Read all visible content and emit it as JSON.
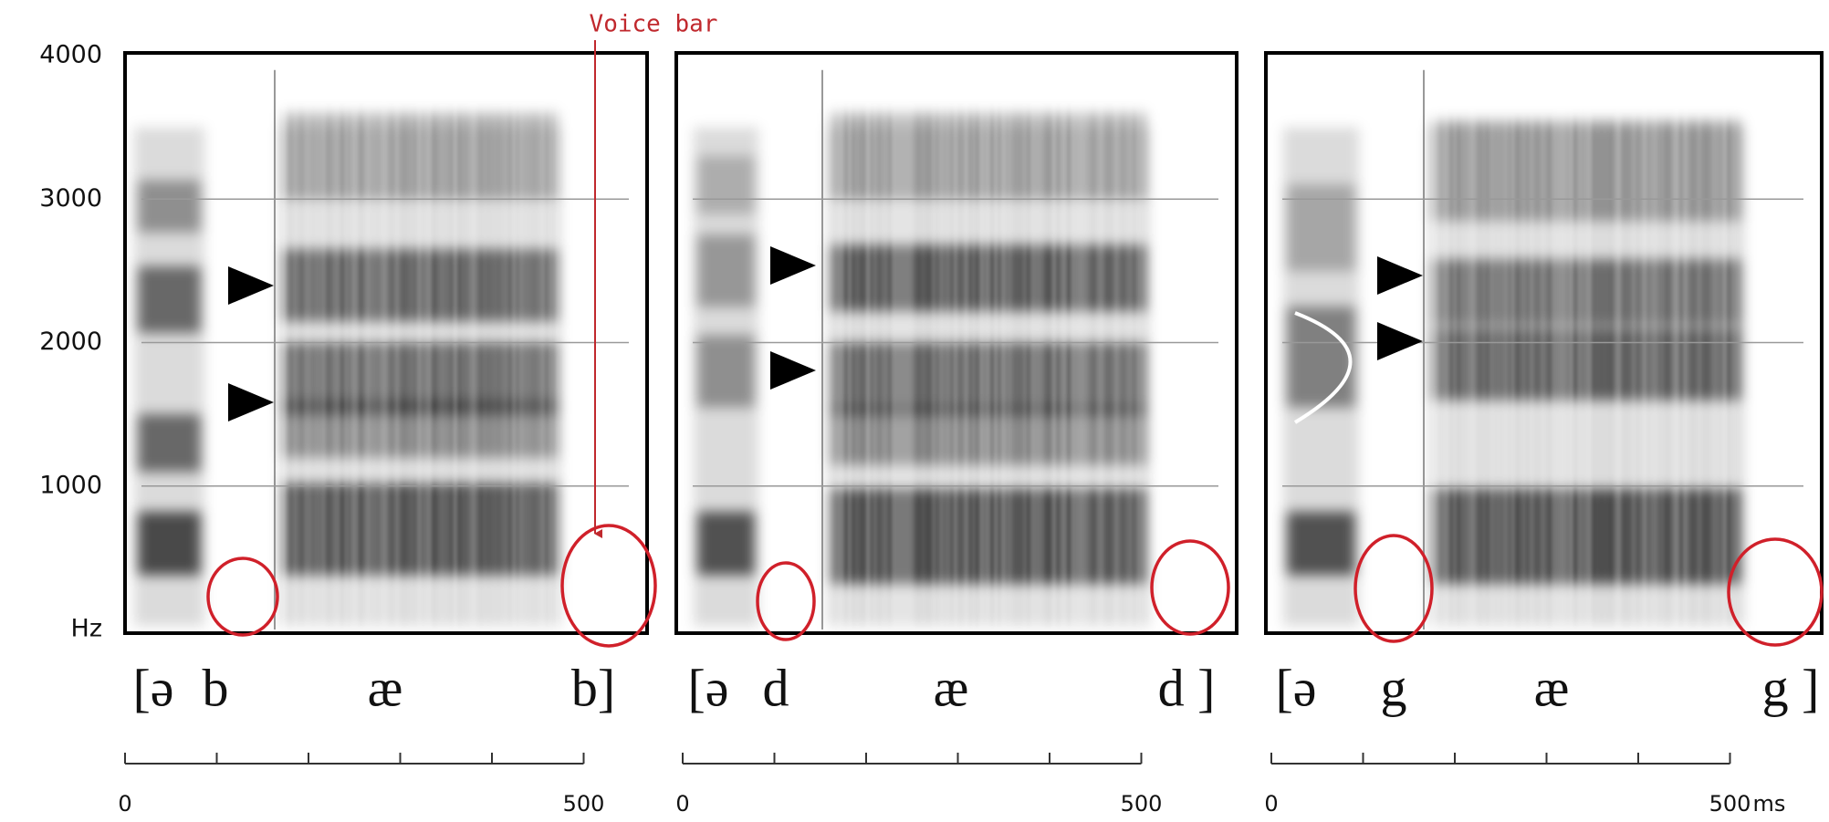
{
  "annotation": "Voice bar",
  "frequency_axis": {
    "ticks": [
      4000,
      3000,
      2000,
      1000
    ],
    "unit": "Hz"
  },
  "time_unit": "ms",
  "panels": [
    {
      "segments": [
        "[ə",
        "b",
        "æ",
        "b]"
      ],
      "time_ticks": [
        0,
        100,
        200,
        300,
        400,
        500
      ]
    },
    {
      "segments": [
        "[ə",
        "d",
        "æ",
        "d ]"
      ],
      "time_ticks": [
        0,
        100,
        200,
        300,
        400,
        500
      ]
    },
    {
      "segments": [
        "[ə",
        "g",
        "æ",
        "g ]"
      ],
      "time_ticks": [
        0,
        100,
        200,
        300,
        400,
        500
      ]
    }
  ]
}
